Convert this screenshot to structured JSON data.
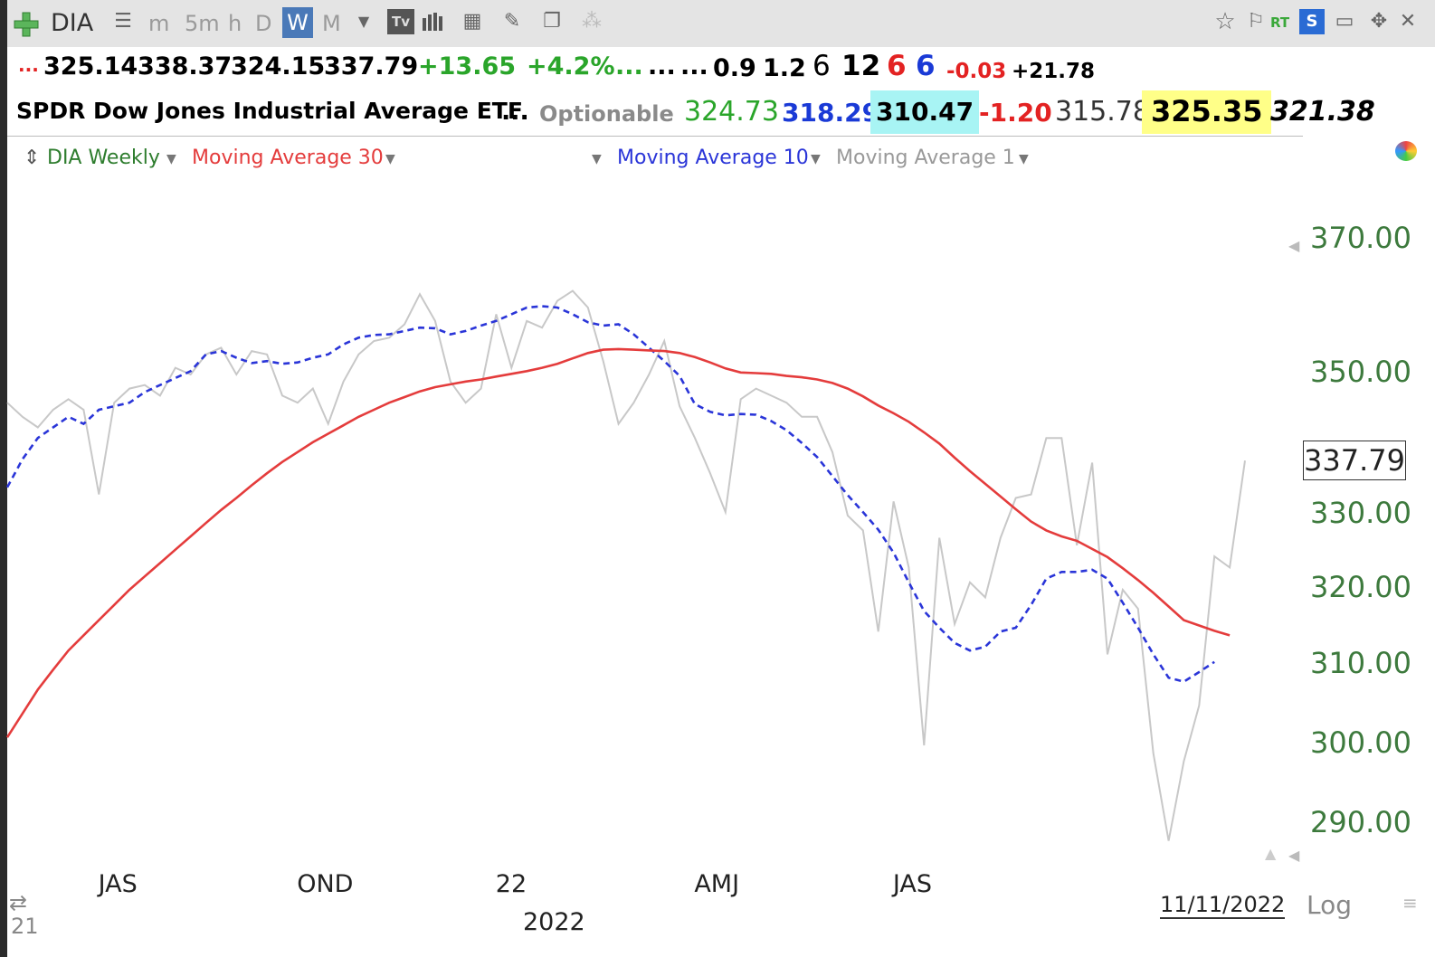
{
  "toolbar": {
    "symbol": "DIA",
    "intervals": [
      "m",
      "5m",
      "h",
      "D",
      "W",
      "M"
    ],
    "selected_interval": "W",
    "right_labels": [
      "RT"
    ]
  },
  "quote": {
    "row1": {
      "lead": "...",
      "open": "325.14",
      "high": "338.37",
      "low": "324.15",
      "close": "337.79",
      "change": "+13.65",
      "change_pct": "+4.2%",
      "dots1": "...",
      "dots2": "...",
      "dots3": "...",
      "v1": "0.9",
      "v2": "1.2",
      "v3": "6",
      "v4": "12",
      "v5": "6",
      "v6": "6",
      "v7": "-0.03",
      "v8": "+21.78"
    },
    "row2": {
      "name": "SPDR Dow Jones Industrial Average ETF",
      "dots": "...",
      "optionable": "Optionable",
      "p1": "324.73",
      "p2": "318.29",
      "p3": "310.47",
      "p4": "-1.20",
      "p5": "315.78",
      "p6": "325.35",
      "p7": "321.38"
    },
    "colors": {
      "positive": "#2aa52a",
      "negative": "#e32222",
      "blue": "#1a3ad6",
      "cyan_bg": "#a8f4f4",
      "yellow_bg": "#ffff88"
    }
  },
  "legend": {
    "series": "DIA Weekly",
    "ma30": "Moving Average 30",
    "ma10": "Moving Average 10",
    "ma1": "Moving Average 1"
  },
  "footer": {
    "date": "11/11/2022",
    "log": "Log",
    "year": "2022",
    "left_cut": "21"
  },
  "chart_data": {
    "type": "line",
    "title": "",
    "ylim": [
      287,
      375
    ],
    "yticks": [
      "370.00",
      "350.00",
      "330.00",
      "320.00",
      "310.00",
      "300.00",
      "290.00"
    ],
    "ytick_values": [
      370,
      350,
      330,
      320,
      310,
      300,
      290
    ],
    "last_price_label": "337.79",
    "last_price": 337.79,
    "x_labels": [
      "JAS",
      "OND",
      "22",
      "AMJ",
      "JAS"
    ],
    "x_label_index": [
      7.5,
      20.5,
      33.5,
      46.5,
      59.5
    ],
    "x_sublabel": "2022",
    "grid": false,
    "legend_position": "top-left",
    "series": [
      {
        "name": "Moving Average 1",
        "color": "#c8c8c8",
        "dash": false,
        "values": [
          346,
          344,
          342.5,
          345,
          346.5,
          345,
          333,
          346,
          348,
          348.5,
          347,
          351,
          350,
          353,
          354,
          350,
          353.5,
          353,
          347,
          346,
          348,
          343,
          349,
          353,
          355,
          355.5,
          357.5,
          362,
          358,
          349,
          346,
          348,
          359,
          351,
          358,
          357,
          361,
          362.5,
          360,
          352,
          343,
          346,
          350,
          355,
          345.5,
          341,
          336,
          330.5,
          346.5,
          348,
          347,
          346,
          344,
          344,
          339,
          330,
          328,
          314.5,
          332,
          323,
          300,
          327,
          315.5,
          321,
          319,
          327,
          332.5,
          333,
          341,
          341,
          326,
          337.5,
          311.5,
          320,
          317.5,
          299,
          288,
          298,
          305,
          324.5,
          323,
          337.79
        ]
      },
      {
        "name": "Moving Average 10",
        "color": "#2a35d8",
        "dash": true,
        "values": [
          334,
          338,
          341,
          342.5,
          344,
          343,
          345,
          345.5,
          346,
          347.5,
          348.5,
          349.5,
          350.5,
          353,
          353.5,
          352.5,
          351.7,
          352,
          351.6,
          351.8,
          352.5,
          353,
          354.5,
          355.5,
          355.9,
          356,
          356.5,
          357,
          356.9,
          356,
          356.5,
          357.3,
          358,
          359,
          360,
          360.2,
          360,
          359,
          357.8,
          357.3,
          357.5,
          356,
          354,
          352,
          349.8,
          345.8,
          344.7,
          344.2,
          344.4,
          344.3,
          343.4,
          342.1,
          340.3,
          338.3,
          335.6,
          332.9,
          330.5,
          328.1,
          325,
          321,
          317.2,
          315,
          313,
          312,
          312.5,
          314.5,
          315,
          318,
          321.5,
          322.4,
          322.4,
          322.7,
          321.5,
          318.3,
          315,
          311.5,
          308.5,
          308,
          309.2,
          310.5
        ]
      },
      {
        "name": "Moving Average 30",
        "color": "#e43c3c",
        "dash": false,
        "values": [
          301,
          304,
          307,
          309.5,
          312,
          314,
          316,
          318,
          320,
          321.8,
          323.6,
          325.4,
          327.2,
          329,
          330.8,
          332.5,
          334.3,
          336,
          337.6,
          339,
          340.4,
          341.6,
          342.8,
          344,
          345,
          346,
          346.8,
          347.6,
          348.2,
          348.6,
          349,
          349.3,
          349.7,
          350.1,
          350.5,
          351,
          351.6,
          352.4,
          353.2,
          353.7,
          353.8,
          353.7,
          353.6,
          353.5,
          353.2,
          352.6,
          351.8,
          350.9,
          350.3,
          350.2,
          350.1,
          349.8,
          349.6,
          349.3,
          348.8,
          348,
          346.9,
          345.6,
          344.5,
          343.3,
          341.8,
          340.2,
          338.2,
          336.3,
          334.5,
          332.7,
          330.9,
          329.2,
          328,
          327.2,
          326.6,
          325.5,
          324.4,
          322.9,
          321.3,
          319.6,
          317.8,
          316,
          315.3,
          314.6,
          314
        ]
      }
    ]
  }
}
